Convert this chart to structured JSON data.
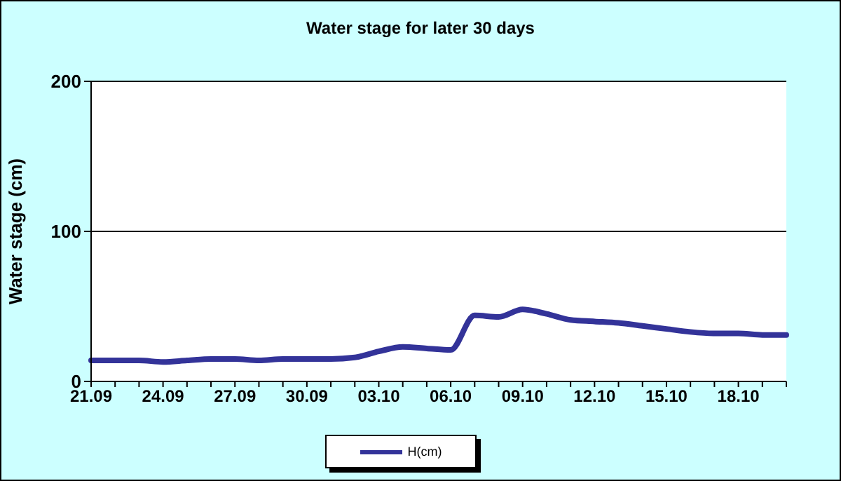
{
  "chart_data": {
    "type": "line",
    "title": "Water stage for later 30 days",
    "ylabel": "Water stage (cm)",
    "categories": [
      "21.09",
      null,
      null,
      "24.09",
      null,
      null,
      "27.09",
      null,
      null,
      "30.09",
      null,
      null,
      "03.10",
      null,
      null,
      "06.10",
      null,
      null,
      "09.10",
      null,
      null,
      "12.10",
      null,
      null,
      "15.10",
      null,
      null,
      "18.10",
      null,
      null
    ],
    "series": [
      {
        "name": "H(cm)",
        "color": "#333399",
        "values": [
          14,
          14,
          14,
          13,
          14,
          15,
          15,
          14,
          15,
          15,
          15,
          16,
          20,
          23,
          22,
          21,
          44,
          43,
          48,
          45,
          41,
          40,
          39,
          37,
          35,
          33,
          32,
          32,
          31,
          31
        ]
      }
    ],
    "ylim": [
      0,
      200
    ],
    "yticks": [
      0,
      100,
      200
    ],
    "grid": "y",
    "legend": "bottom",
    "marker": "none",
    "line_style": "solid"
  }
}
